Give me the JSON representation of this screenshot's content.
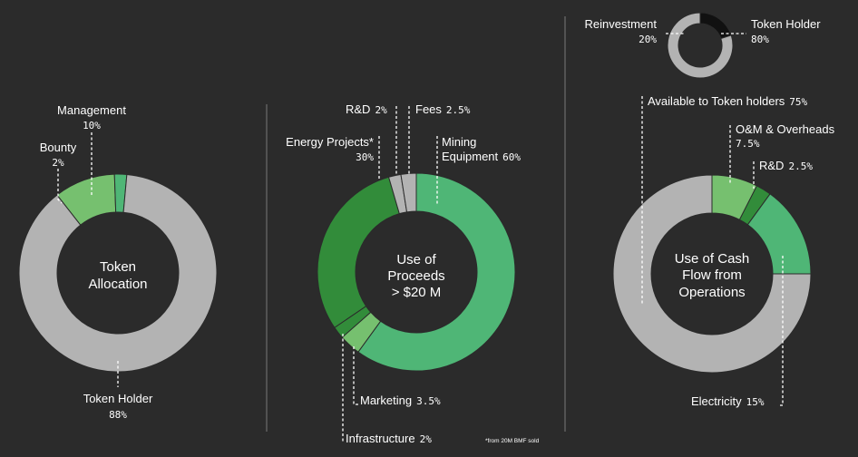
{
  "colors": {
    "background": "#2b2b2b",
    "gray": "#b3b3b3",
    "light_green": "#76c06f",
    "green": "#4fb676",
    "dark_green": "#328c3a",
    "black": "#111111"
  },
  "chart_data": [
    {
      "type": "pie",
      "center_label": [
        "Token",
        "Allocation"
      ],
      "slices": [
        {
          "name": "Token Holder",
          "value": 88,
          "value_label": "88%",
          "color": "#b3b3b3"
        },
        {
          "name": "Bounty",
          "value": 2,
          "value_label": "2%",
          "color": "#4fb676"
        },
        {
          "name": "Management",
          "value": 10,
          "value_label": "10%",
          "color": "#76c06f"
        }
      ]
    },
    {
      "type": "pie",
      "center_label": [
        "Use of",
        "Proceeds",
        "> $20 M"
      ],
      "footnote": "*from 20M BMF sold",
      "slices": [
        {
          "name": "Mining Equipment",
          "value": 60,
          "value_label": "60%",
          "color": "#4fb676"
        },
        {
          "name": "Marketing",
          "value": 3.5,
          "value_label": "3.5%",
          "color": "#76c06f"
        },
        {
          "name": "Infrastructure",
          "value": 2,
          "value_label": "2%",
          "color": "#328c3a"
        },
        {
          "name": "Energy Projects*",
          "value": 30,
          "value_label": "30%",
          "color": "#328c3a"
        },
        {
          "name": "R&D",
          "value": 2,
          "value_label": "2%",
          "color": "#b3b3b3"
        },
        {
          "name": "Fees",
          "value": 2.5,
          "value_label": "2.5%",
          "color": "#b3b3b3"
        }
      ]
    },
    {
      "type": "pie",
      "center_label": [
        "Use of Cash",
        "Flow from",
        "Operations"
      ],
      "slices": [
        {
          "name": "O&M & Overheads",
          "value": 7.5,
          "value_label": "7.5%",
          "color": "#76c06f"
        },
        {
          "name": "R&D",
          "value": 2.5,
          "value_label": "2.5%",
          "color": "#328c3a"
        },
        {
          "name": "Electricity",
          "value": 15,
          "value_label": "15%",
          "color": "#4fb676"
        },
        {
          "name": "Available to Token holders",
          "value": 75,
          "value_label": "75%",
          "color": "#b3b3b3"
        }
      ]
    },
    {
      "type": "pie",
      "slices": [
        {
          "name": "Token Holder",
          "value": 80,
          "value_label": "80%",
          "color": "#b3b3b3"
        },
        {
          "name": "Reinvestment",
          "value": 20,
          "value_label": "20%",
          "color": "#111111"
        }
      ]
    }
  ]
}
